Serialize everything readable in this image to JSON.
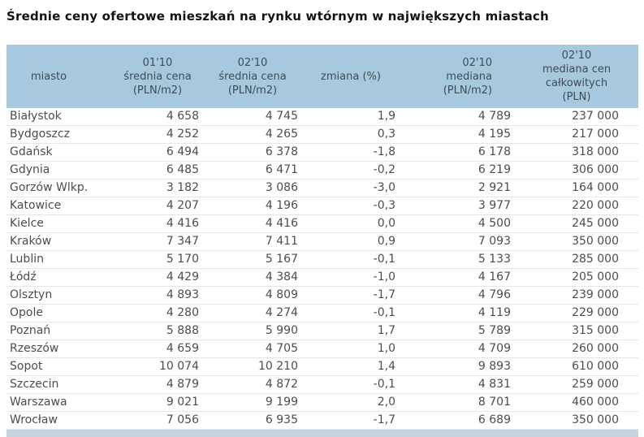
{
  "colors": {
    "header_bg": "#a7c9dd",
    "footer_bg": "#c6d4dd",
    "row_border": "#dde8f0",
    "text": "#4d4d4d",
    "header_text": "#3e4c55",
    "title_text": "#141414"
  },
  "chart_data": {
    "type": "table",
    "title": "Średnie ceny ofertowe mieszkań na rynku wtórnym w największych miastach",
    "columns": [
      {
        "id": "miasto",
        "align": "left",
        "lines": [
          "miasto"
        ],
        "label": "miasto"
      },
      {
        "id": "srednia-0110",
        "align": "center",
        "lines": [
          "01'10",
          "średnia cena",
          "(PLN/m2)"
        ],
        "label": "01'10 średnia cena (PLN/m2)"
      },
      {
        "id": "srednia-0210",
        "align": "center",
        "lines": [
          "02'10",
          "średnia cena",
          "(PLN/m2)"
        ],
        "label": "02'10 średnia cena (PLN/m2)"
      },
      {
        "id": "zmiana",
        "align": "center",
        "lines": [
          "zmiana (%)"
        ],
        "label": "zmiana (%)"
      },
      {
        "id": "mediana-0210",
        "align": "right",
        "lines": [
          "02'10",
          "mediana",
          "(PLN/m2)"
        ],
        "label": "02'10 mediana (PLN/m2)"
      },
      {
        "id": "mediana-calk-0210",
        "align": "center",
        "lines": [
          "02'10",
          "mediana cen",
          "całkowitych",
          "(PLN)"
        ],
        "label": "02'10 mediana cen całkowitych (PLN)"
      }
    ],
    "rows": [
      [
        "Białystok",
        "4 658",
        "4 745",
        "1,9",
        "4 789",
        "237 000"
      ],
      [
        "Bydgoszcz",
        "4 252",
        "4 265",
        "0,3",
        "4 195",
        "217 000"
      ],
      [
        "Gdańsk",
        "6 494",
        "6 378",
        "-1,8",
        "6 178",
        "318 000"
      ],
      [
        "Gdynia",
        "6 485",
        "6 471",
        "-0,2",
        "6 219",
        "306 000"
      ],
      [
        "Gorzów Wlkp.",
        "3 182",
        "3 086",
        "-3,0",
        "2 921",
        "164 000"
      ],
      [
        "Katowice",
        "4 207",
        "4 196",
        "-0,3",
        "3 977",
        "220 000"
      ],
      [
        "Kielce",
        "4 416",
        "4 416",
        "0,0",
        "4 500",
        "245 000"
      ],
      [
        "Kraków",
        "7 347",
        "7 411",
        "0,9",
        "7 093",
        "350 000"
      ],
      [
        "Lublin",
        "5 170",
        "5 167",
        "-0,1",
        "5 133",
        "285 000"
      ],
      [
        "Łódź",
        "4 429",
        "4 384",
        "-1,0",
        "4 167",
        "205 000"
      ],
      [
        "Olsztyn",
        "4 893",
        "4 809",
        "-1,7",
        "4 796",
        "239 000"
      ],
      [
        "Opole",
        "4 280",
        "4 274",
        "-0,1",
        "4 119",
        "229 000"
      ],
      [
        "Poznań",
        "5 888",
        "5 990",
        "1,7",
        "5 789",
        "315 000"
      ],
      [
        "Rzeszów",
        "4 659",
        "4 705",
        "1,0",
        "4 709",
        "260 000"
      ],
      [
        "Sopot",
        "10 074",
        "10 210",
        "1,4",
        "9 893",
        "610 000"
      ],
      [
        "Szczecin",
        "4 879",
        "4 872",
        "-0,1",
        "4 831",
        "259 000"
      ],
      [
        "Warszawa",
        "9 021",
        "9 199",
        "2,0",
        "8 701",
        "460 000"
      ],
      [
        "Wrocław",
        "7 056",
        "6 935",
        "-1,7",
        "6 689",
        "350 000"
      ]
    ]
  }
}
